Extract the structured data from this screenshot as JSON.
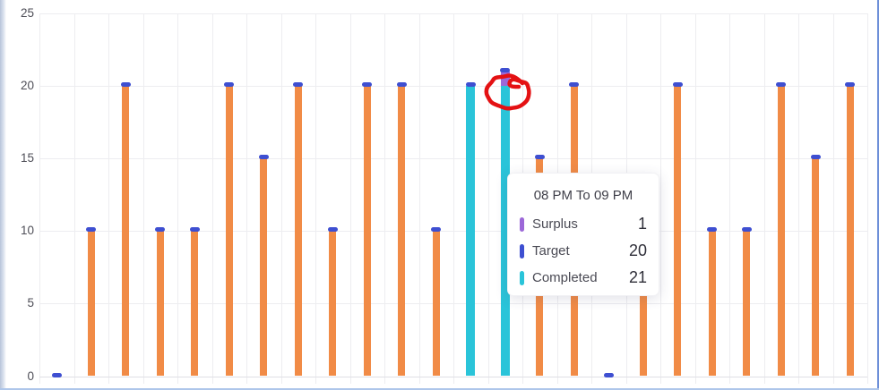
{
  "chart_data": {
    "type": "bar",
    "title": "",
    "ylim": [
      0,
      25
    ],
    "y_ticks": [
      "0",
      "5",
      "10",
      "15",
      "20",
      "25"
    ],
    "grid": true,
    "x_axis_labels_visible": false,
    "colors": {
      "primary_bar_orange": "#f18b46",
      "completed_cyan": "#2ac4d9",
      "target_blue": "#3e4fd1",
      "surplus_purple": "#9c68d8"
    },
    "bars": [
      {
        "value": 0,
        "series": "orange"
      },
      {
        "value": 10,
        "series": "orange"
      },
      {
        "value": 20,
        "series": "orange"
      },
      {
        "value": 10,
        "series": "orange"
      },
      {
        "value": 10,
        "series": "orange"
      },
      {
        "value": 20,
        "series": "orange"
      },
      {
        "value": 15,
        "series": "orange"
      },
      {
        "value": 20,
        "series": "orange"
      },
      {
        "value": 10,
        "series": "orange"
      },
      {
        "value": 20,
        "series": "orange"
      },
      {
        "value": 20,
        "series": "orange"
      },
      {
        "value": 10,
        "series": "orange"
      },
      {
        "value": 20,
        "series": "completed"
      },
      {
        "value": 21,
        "series": "completed",
        "surplus": 1,
        "target": 20,
        "annotated": true,
        "hovered": true
      },
      {
        "value": 15,
        "series": "orange"
      },
      {
        "value": 20,
        "series": "orange"
      },
      {
        "value": 0,
        "series": "orange"
      },
      {
        "value": 10,
        "series": "orange"
      },
      {
        "value": 20,
        "series": "orange"
      },
      {
        "value": 10,
        "series": "orange"
      },
      {
        "value": 10,
        "series": "orange"
      },
      {
        "value": 20,
        "series": "orange"
      },
      {
        "value": 15,
        "series": "orange"
      },
      {
        "value": 20,
        "series": "orange"
      }
    ],
    "target_dash_on_every_bar": true
  },
  "tooltip": {
    "title": "08 PM To 09 PM",
    "rows": [
      {
        "label": "Surplus",
        "value": "1",
        "color": "#9c68d8"
      },
      {
        "label": "Target",
        "value": "20",
        "color": "#3e4fd1"
      },
      {
        "label": "Completed",
        "value": "21",
        "color": "#2ac4d9"
      }
    ]
  },
  "annotation": {
    "type": "freehand-circle",
    "color": "#e41113",
    "target": "top of completed bar with surplus (08 PM)"
  }
}
